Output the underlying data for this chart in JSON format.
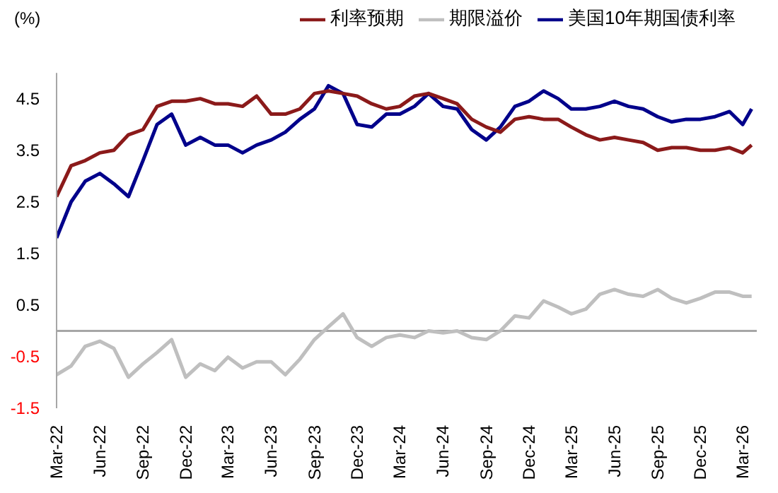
{
  "chart_data": {
    "type": "line",
    "ylabel": "(%)",
    "x": [
      "2022-03-01",
      "2022-04-01",
      "2022-05-01",
      "2022-06-01",
      "2022-07-01",
      "2022-08-01",
      "2022-09-01",
      "2022-10-01",
      "2022-11-01",
      "2022-12-01",
      "2023-01-01",
      "2023-02-01",
      "2023-03-01",
      "2023-04-01",
      "2023-05-01",
      "2023-06-01",
      "2023-07-01",
      "2023-08-01",
      "2023-09-01",
      "2023-10-01",
      "2023-11-01",
      "2023-12-01",
      "2024-01-01",
      "2024-02-01",
      "2024-03-01",
      "2024-04-01",
      "2024-05-01",
      "2024-06-01",
      "2024-07-01",
      "2024-08-01",
      "2024-09-01",
      "2024-10-01",
      "2024-11-01",
      "2024-12-01",
      "2025-01-01",
      "2025-02-01",
      "2025-03-01",
      "2025-04-01",
      "2025-05-01",
      "2025-06-01",
      "2025-07-01",
      "2025-08-01",
      "2025-09-01",
      "2025-10-01",
      "2025-11-01",
      "2025-12-01",
      "2026-01-01",
      "2026-02-01",
      "2026-03-01",
      "2026-03-20"
    ],
    "series": [
      {
        "name": "美国10年期国债利率",
        "color": "#00008b",
        "values": [
          1.8,
          2.5,
          2.9,
          3.05,
          2.85,
          2.6,
          3.3,
          4.0,
          4.2,
          3.6,
          3.75,
          3.6,
          3.6,
          3.45,
          3.6,
          3.7,
          3.85,
          4.1,
          4.3,
          4.75,
          4.6,
          4.0,
          3.95,
          4.2,
          4.2,
          4.35,
          4.6,
          4.35,
          4.3,
          3.9,
          3.7,
          3.95,
          4.35,
          4.45,
          4.65,
          4.5,
          4.3,
          4.3,
          4.35,
          4.45,
          4.35,
          4.3,
          4.15,
          4.05,
          4.1,
          4.1,
          4.15,
          4.25,
          4.0,
          4.3
        ]
      },
      {
        "name": "利率预期",
        "color": "#8b1a1a",
        "values": [
          2.6,
          3.2,
          3.3,
          3.45,
          3.5,
          3.8,
          3.9,
          4.35,
          4.45,
          4.45,
          4.5,
          4.4,
          4.4,
          4.35,
          4.55,
          4.2,
          4.2,
          4.3,
          4.6,
          4.65,
          4.6,
          4.55,
          4.4,
          4.3,
          4.35,
          4.55,
          4.6,
          4.5,
          4.4,
          4.1,
          3.95,
          3.85,
          4.1,
          4.15,
          4.1,
          4.1,
          3.95,
          3.8,
          3.7,
          3.75,
          3.7,
          3.65,
          3.5,
          3.55,
          3.55,
          3.5,
          3.5,
          3.55,
          3.45,
          3.6
        ]
      },
      {
        "name": "期限溢价",
        "color": "#bfbfbf",
        "values": [
          -0.85,
          -0.68,
          -0.3,
          -0.2,
          -0.34,
          -0.9,
          -0.64,
          -0.42,
          -0.17,
          -0.9,
          -0.64,
          -0.77,
          -0.51,
          -0.72,
          -0.6,
          -0.6,
          -0.85,
          -0.55,
          -0.17,
          0.08,
          0.33,
          -0.13,
          -0.3,
          -0.13,
          -0.08,
          -0.13,
          0,
          -0.04,
          0,
          -0.13,
          -0.17,
          0,
          0.29,
          0.25,
          0.58,
          0.46,
          0.33,
          0.42,
          0.71,
          0.8,
          0.71,
          0.67,
          0.8,
          0.63,
          0.54,
          0.63,
          0.75,
          0.75,
          0.67,
          0.67
        ]
      }
    ],
    "xlim": [
      "2022-03-01",
      "2026-03-31"
    ],
    "xticks": [
      {
        "value": "2022-03-01",
        "label": "Mar-22"
      },
      {
        "value": "2022-06-01",
        "label": "Jun-22"
      },
      {
        "value": "2022-09-01",
        "label": "Sep-22"
      },
      {
        "value": "2022-12-01",
        "label": "Dec-22"
      },
      {
        "value": "2023-03-01",
        "label": "Mar-23"
      },
      {
        "value": "2023-06-01",
        "label": "Jun-23"
      },
      {
        "value": "2023-09-01",
        "label": "Sep-23"
      },
      {
        "value": "2023-12-01",
        "label": "Dec-23"
      },
      {
        "value": "2024-03-01",
        "label": "Mar-24"
      },
      {
        "value": "2024-06-01",
        "label": "Jun-24"
      },
      {
        "value": "2024-09-01",
        "label": "Sep-24"
      },
      {
        "value": "2024-12-01",
        "label": "Dec-24"
      },
      {
        "value": "2025-03-01",
        "label": "Mar-25"
      },
      {
        "value": "2025-06-01",
        "label": "Jun-25"
      },
      {
        "value": "2025-09-01",
        "label": "Sep-25"
      },
      {
        "value": "2025-12-01",
        "label": "Dec-25"
      },
      {
        "value": "2026-03-01",
        "label": "Mar-26"
      }
    ],
    "ylim": [
      -1.5,
      5
    ],
    "yticks": [
      -1.5,
      -0.5,
      0.5,
      1.5,
      2.5,
      3.5,
      4.5
    ],
    "ref_lines": [
      {
        "axis": "y",
        "value": 0,
        "color": "#a6a6a6"
      }
    ],
    "grid": false,
    "legend": "top right",
    "marker": "none",
    "line_style": "solid"
  }
}
